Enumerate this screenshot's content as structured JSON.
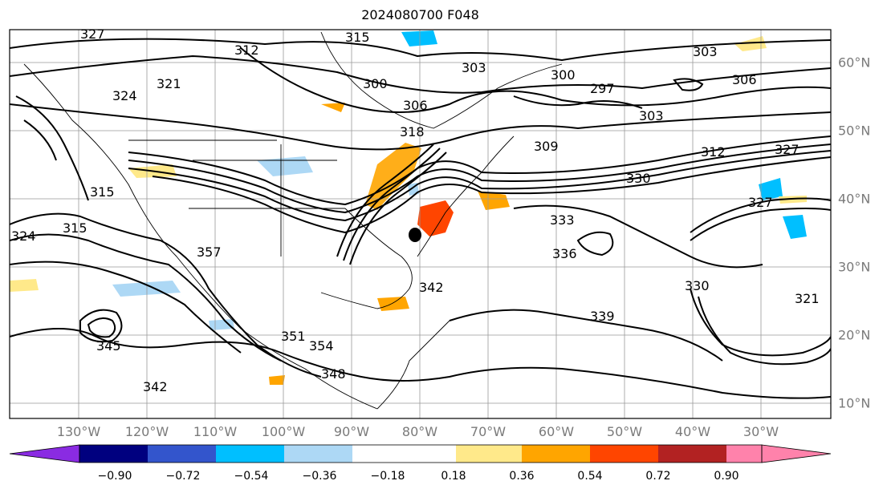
{
  "title": "2024080700 F048",
  "map": {
    "lon_labels": [
      "130°W",
      "120°W",
      "110°W",
      "100°W",
      "90°W",
      "80°W",
      "70°W",
      "60°W",
      "50°W",
      "40°W",
      "30°W"
    ],
    "lat_labels": [
      "60°N",
      "50°N",
      "40°N",
      "30°N",
      "20°N",
      "10°N"
    ],
    "contour_labels": [
      "327",
      "312",
      "315",
      "321",
      "324",
      "303",
      "300",
      "306",
      "300",
      "297",
      "303",
      "306",
      "303",
      "312",
      "327",
      "330",
      "324",
      "315",
      "315",
      "318",
      "309",
      "333",
      "336",
      "339",
      "342",
      "345",
      "330",
      "327",
      "321",
      "348",
      "351",
      "354",
      "357",
      "342"
    ]
  },
  "colorbar": {
    "ticks": [
      "−0.90",
      "−0.72",
      "−0.54",
      "−0.36",
      "−0.18",
      "0.18",
      "0.36",
      "0.54",
      "0.72",
      "0.90"
    ],
    "colors": [
      "#8a2be2",
      "#00007f",
      "#3355cc",
      "#00bfff",
      "#add8f5",
      "#ffffff",
      "#ffe98a",
      "#ffa500",
      "#ff4500",
      "#b22222",
      "#ff82ab"
    ]
  }
}
